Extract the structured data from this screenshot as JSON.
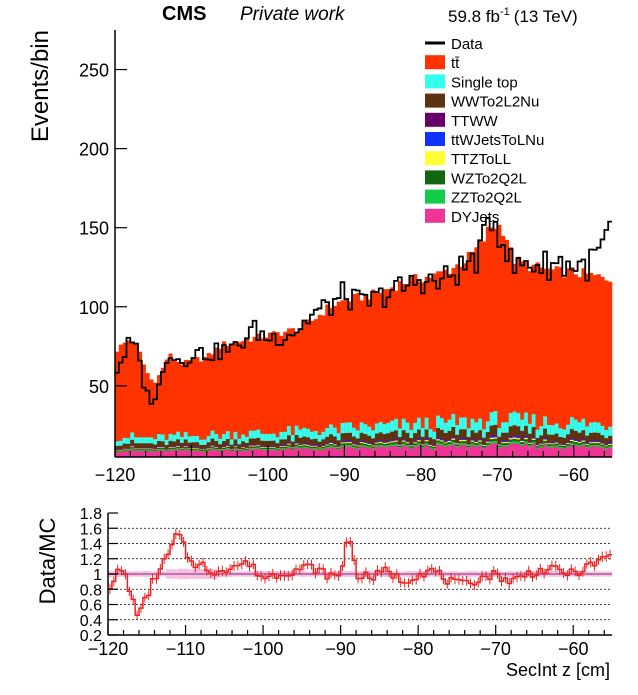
{
  "header": {
    "experiment": "CMS",
    "subtitle": "Private work",
    "lumi_value": "59.8 fb",
    "lumi_exp": "-1",
    "lumi_energy": "(13 TeV)"
  },
  "colors": {
    "ttbar": "#ff3300",
    "single_top": "#33ffee",
    "wwto2l2nu": "#5c3311",
    "ttww": "#660066",
    "ttwjets": "#1133ff",
    "ttztoll": "#ffff33",
    "wzto2q2l": "#116611",
    "zzto2q2l": "#11cc44",
    "dyjets": "#ee3399",
    "data": "#000000",
    "ratio_line": "#ee2222",
    "ratio_band": "#ee99cc",
    "unity_line": "#773388"
  },
  "chart_data": [
    {
      "type": "histogram",
      "ylabel": "Events/bin",
      "xlim": [
        -120,
        -55
      ],
      "ylim": [
        5,
        275
      ],
      "yticks": [
        50,
        100,
        150,
        200,
        250
      ],
      "xticks": [
        -120,
        -110,
        -100,
        -90,
        -80,
        -70,
        -60
      ],
      "legend_position": "top-right",
      "legend": [
        {
          "label": "Data",
          "color_key": "data",
          "style": "line"
        },
        {
          "label": "tt̄",
          "color_key": "ttbar",
          "style": "box"
        },
        {
          "label": "Single top",
          "color_key": "single_top",
          "style": "box"
        },
        {
          "label": "WWTo2L2Nu",
          "color_key": "wwto2l2nu",
          "style": "box"
        },
        {
          "label": "TTWW",
          "color_key": "ttww",
          "style": "box"
        },
        {
          "label": "ttWJetsToLNu",
          "color_key": "ttwjets",
          "style": "box"
        },
        {
          "label": "TTZToLL",
          "color_key": "ttztoll",
          "style": "box"
        },
        {
          "label": "WZTo2Q2L",
          "color_key": "wzto2q2l",
          "style": "box"
        },
        {
          "label": "ZZTo2Q2L",
          "color_key": "zzto2q2l",
          "style": "box"
        },
        {
          "label": "DYJets",
          "color_key": "dyjets",
          "style": "box"
        }
      ],
      "profile_x": [
        -120,
        -118,
        -117,
        -116,
        -115,
        -114,
        -113,
        -112,
        -111,
        -110,
        -108,
        -106,
        -104,
        -102,
        -100,
        -98,
        -96,
        -94,
        -92,
        -90,
        -88,
        -86,
        -84,
        -82,
        -80,
        -78,
        -76,
        -74,
        -72,
        -71,
        -70,
        -69,
        -68,
        -66,
        -64,
        -62,
        -60,
        -58,
        -56,
        -55
      ],
      "mc_total": [
        72,
        80,
        74,
        60,
        52,
        58,
        70,
        66,
        64,
        66,
        68,
        76,
        78,
        80,
        82,
        84,
        86,
        92,
        100,
        104,
        106,
        108,
        112,
        116,
        118,
        120,
        124,
        130,
        140,
        150,
        152,
        148,
        130,
        126,
        124,
        122,
        122,
        120,
        118,
        118
      ],
      "data_total": [
        58,
        78,
        70,
        46,
        40,
        52,
        74,
        68,
        64,
        72,
        70,
        72,
        74,
        86,
        80,
        82,
        86,
        96,
        100,
        108,
        102,
        104,
        110,
        112,
        118,
        114,
        120,
        126,
        134,
        160,
        152,
        140,
        124,
        128,
        126,
        128,
        126,
        126,
        140,
        150
      ],
      "nonttbar_total": [
        13,
        13,
        12,
        12,
        12,
        12,
        13,
        13,
        13,
        13,
        14,
        14,
        15,
        15,
        15,
        16,
        16,
        17,
        17,
        18,
        19,
        19,
        20,
        20,
        21,
        21,
        22,
        22,
        23,
        23,
        24,
        24,
        23,
        23,
        22,
        22,
        22,
        21,
        21,
        21
      ],
      "bins": 130
    },
    {
      "type": "ratio",
      "ylabel": "Data/MC",
      "xlabel": "SecInt z [cm]",
      "xlim": [
        -120,
        -55
      ],
      "ylim": [
        0.2,
        1.8
      ],
      "yticks": [
        "0.2",
        "0.4",
        "0.6",
        "0.8",
        "1",
        "1.2",
        "1.4",
        "1.6",
        "1.8"
      ],
      "xticks": [
        -120,
        -110,
        -100,
        -90,
        -80,
        -70,
        -60
      ],
      "ratio_x": [
        -120,
        -119,
        -118,
        -117,
        -116,
        -115,
        -114,
        -113,
        -112,
        -111,
        -110,
        -109,
        -108,
        -107,
        -106,
        -104,
        -102,
        -100,
        -98,
        -96,
        -94,
        -92,
        -90,
        -89,
        -88,
        -86,
        -84,
        -82,
        -80,
        -78,
        -76,
        -74,
        -72,
        -70,
        -68,
        -66,
        -64,
        -62,
        -60,
        -58,
        -56,
        -55
      ],
      "ratio_y": [
        0.8,
        1.0,
        1.05,
        0.7,
        0.45,
        0.7,
        0.95,
        1.1,
        1.3,
        1.55,
        1.3,
        1.1,
        1.2,
        0.95,
        1.05,
        1.1,
        1.15,
        0.95,
        1.0,
        1.05,
        1.1,
        1.0,
        0.95,
        1.6,
        1.0,
        0.95,
        1.05,
        0.9,
        1.0,
        1.05,
        0.9,
        0.85,
        0.95,
        1.0,
        0.9,
        1.0,
        1.05,
        1.05,
        1.0,
        1.1,
        1.2,
        1.25
      ]
    }
  ]
}
